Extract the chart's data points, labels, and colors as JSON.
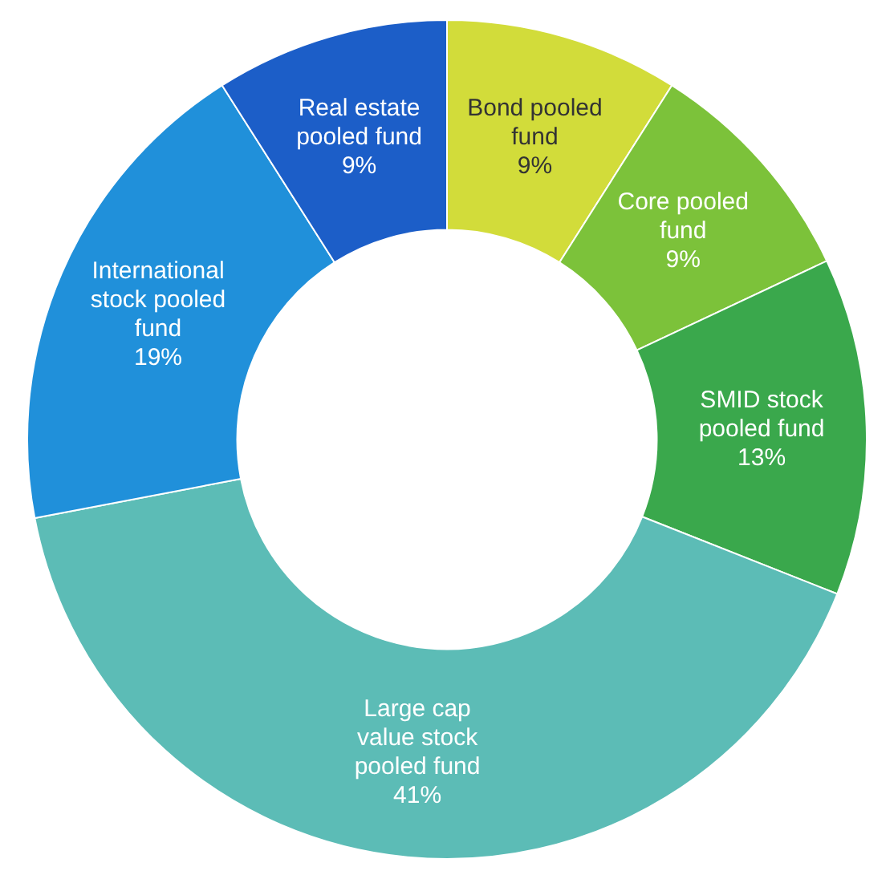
{
  "chart_data": {
    "type": "donut",
    "categories": [
      "Bond pooled fund",
      "Core pooled fund",
      "SMID stock pooled fund",
      "Large cap value stock pooled fund",
      "International stock pooled fund",
      "Real estate pooled fund"
    ],
    "values": [
      9,
      9,
      13,
      41,
      19,
      9
    ],
    "value_labels": [
      "9%",
      "9%",
      "13%",
      "41%",
      "19%",
      "9%"
    ],
    "colors": [
      "#d2dc3a",
      "#7cc23a",
      "#3aa84c",
      "#5cbcb6",
      "#2090da",
      "#1c5ec8"
    ],
    "legend": false
  }
}
